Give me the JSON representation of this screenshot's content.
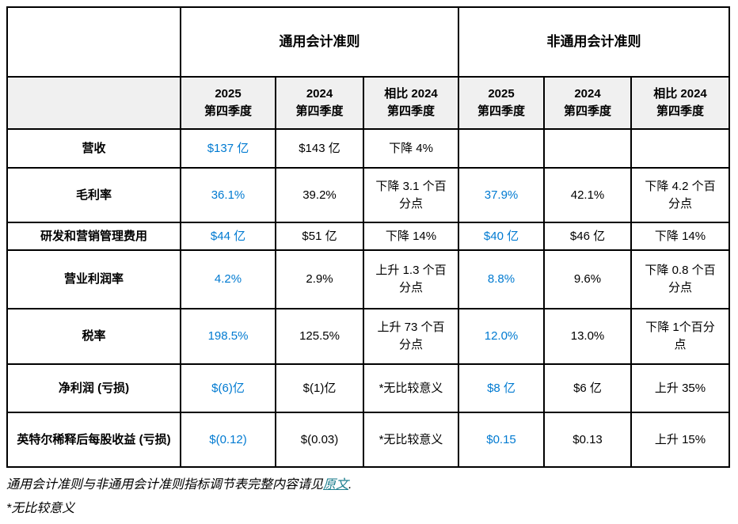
{
  "colors": {
    "accent_blue": "#007ad1",
    "link_teal": "#1f7f8f",
    "subheader_bg": "#f0f0f0",
    "border": "#000000"
  },
  "table": {
    "groups": {
      "gaap": "通用会计准则",
      "non_gaap": "非通用会计准则"
    },
    "col_headers": [
      {
        "line1": "2025",
        "line2": "第四季度"
      },
      {
        "line1": "2024",
        "line2": "第四季度"
      },
      {
        "line1": "相比 2024",
        "line2": "第四季度"
      },
      {
        "line1": "2025",
        "line2": "第四季度"
      },
      {
        "line1": "2024",
        "line2": "第四季度"
      },
      {
        "line1": "相比 2024",
        "line2": "第四季度"
      }
    ],
    "rows": [
      {
        "label": "营收",
        "cells": [
          "$137 亿",
          "$143 亿",
          "下降 4%",
          "",
          "",
          ""
        ]
      },
      {
        "label": "毛利率",
        "cells": [
          "36.1%",
          "39.2%",
          "下降 3.1 个百分点",
          "37.9%",
          "42.1%",
          "下降 4.2 个百分点"
        ]
      },
      {
        "label": "研发和营销管理费用",
        "cells": [
          "$44 亿",
          "$51 亿",
          "下降 14%",
          "$40 亿",
          "$46 亿",
          "下降 14%"
        ]
      },
      {
        "label": "营业利润率",
        "cells": [
          "4.2%",
          "2.9%",
          "上升 1.3 个百分点",
          "8.8%",
          "9.6%",
          "下降 0.8 个百分点"
        ]
      },
      {
        "label": "税率",
        "cells": [
          "198.5%",
          "125.5%",
          "上升 73 个百分点",
          "12.0%",
          "13.0%",
          "下降 1个百分点"
        ]
      },
      {
        "label": "净利润 (亏损)",
        "cells": [
          "$(6)亿",
          "$(1)亿",
          "*无比较意义",
          "$8 亿",
          "$6 亿",
          "上升 35%"
        ]
      },
      {
        "label": "英特尔稀释后每股收益 (亏损)",
        "cells": [
          "$(0.12)",
          "$(0.03)",
          "*无比较意义",
          "$0.15",
          "$0.13",
          "上升 15%"
        ]
      }
    ]
  },
  "footer": {
    "note_prefix": "通用会计准则与非通用会计准则指标调节表完整内容请见",
    "link_text": "原文",
    "note_suffix": ".",
    "footnote": "*无比较意义"
  }
}
